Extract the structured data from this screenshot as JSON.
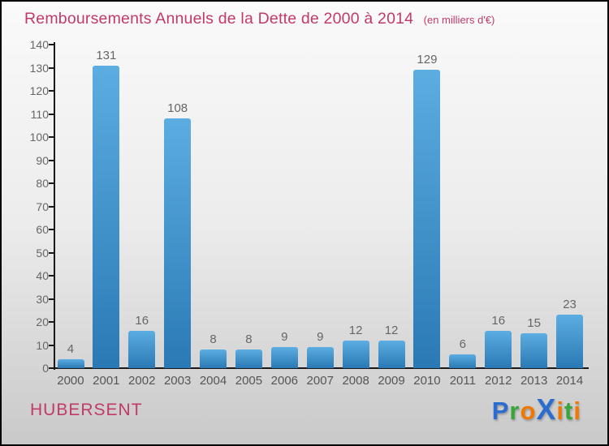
{
  "title": "Remboursements Annuels de la Dette de 2000 à 2014",
  "subtitle": "(en milliers d'€)",
  "footer": {
    "place": "HUBERSENT"
  },
  "logo": {
    "name": "Proxiti",
    "letters": [
      {
        "ch": "P",
        "color": "#2a6cd0",
        "big": false
      },
      {
        "ch": "r",
        "color": "#3aa53a",
        "big": false
      },
      {
        "ch": "o",
        "color": "#f07800",
        "big": false
      },
      {
        "ch": "X",
        "color": "#2a6cd0",
        "big": true
      },
      {
        "ch": "i",
        "color": "#f07800",
        "big": false
      },
      {
        "ch": "t",
        "color": "#3aa53a",
        "big": false
      },
      {
        "ch": "i",
        "color": "#f07800",
        "big": false
      }
    ]
  },
  "colors": {
    "accent_pink": "#c23a66",
    "axis": "#1a1a1a",
    "bar_top": "#5cade1",
    "bar_bottom": "#2a79b5",
    "label_gray": "#666666"
  },
  "chart_data": {
    "type": "bar",
    "title": "Remboursements Annuels de la Dette de 2000 à 2014",
    "subtitle": "(en milliers d'€)",
    "categories": [
      "2000",
      "2001",
      "2002",
      "2003",
      "2004",
      "2005",
      "2006",
      "2007",
      "2008",
      "2009",
      "2010",
      "2011",
      "2012",
      "2013",
      "2014"
    ],
    "values": [
      4,
      131,
      16,
      108,
      8,
      8,
      9,
      9,
      12,
      12,
      129,
      6,
      16,
      15,
      23
    ],
    "xlabel": "",
    "ylabel": "",
    "ylim": [
      0,
      140
    ],
    "ytick_step": 10,
    "grid": false,
    "legend": "none"
  }
}
